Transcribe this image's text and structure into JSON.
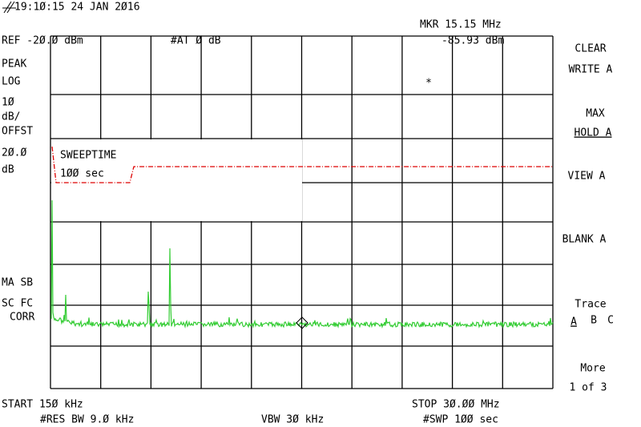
{
  "header": {
    "timestamp": "19:1Ø:15  24 JAN 2Ø16",
    "ref": "REF -2Ø.Ø dBm",
    "atten": "#AT Ø dB",
    "marker_freq": "MKR 15.15 MHz",
    "marker_level": "-85.93 dBm"
  },
  "left_panel": [
    "PEAK",
    "LOG",
    "1Ø",
    "dB/",
    "OFFST",
    "2Ø.Ø",
    "dB",
    "MA SB",
    "SC FC",
    "CORR"
  ],
  "screen": {
    "sweep_title": "SWEEPTIME",
    "sweep_value": "1ØØ sec",
    "marker_symbol": "*"
  },
  "softkeys": {
    "clear": "CLEAR",
    "write": "WRITE A",
    "max": "MAX",
    "hold": "HOLD A",
    "view": "VIEW A",
    "blank": "BLANK A",
    "trace": "Trace",
    "trace_a": "A",
    "trace_b": "B",
    "trace_c": "C",
    "more": "More",
    "page": "1 of 3"
  },
  "footer": {
    "start": "START 15Ø kHz",
    "res_bw": "#RES BW 9.Ø kHz",
    "vbw": "VBW 3Ø kHz",
    "stop": "STOP 3Ø.ØØ MHz",
    "swp": "#SWP 1ØØ sec"
  }
}
